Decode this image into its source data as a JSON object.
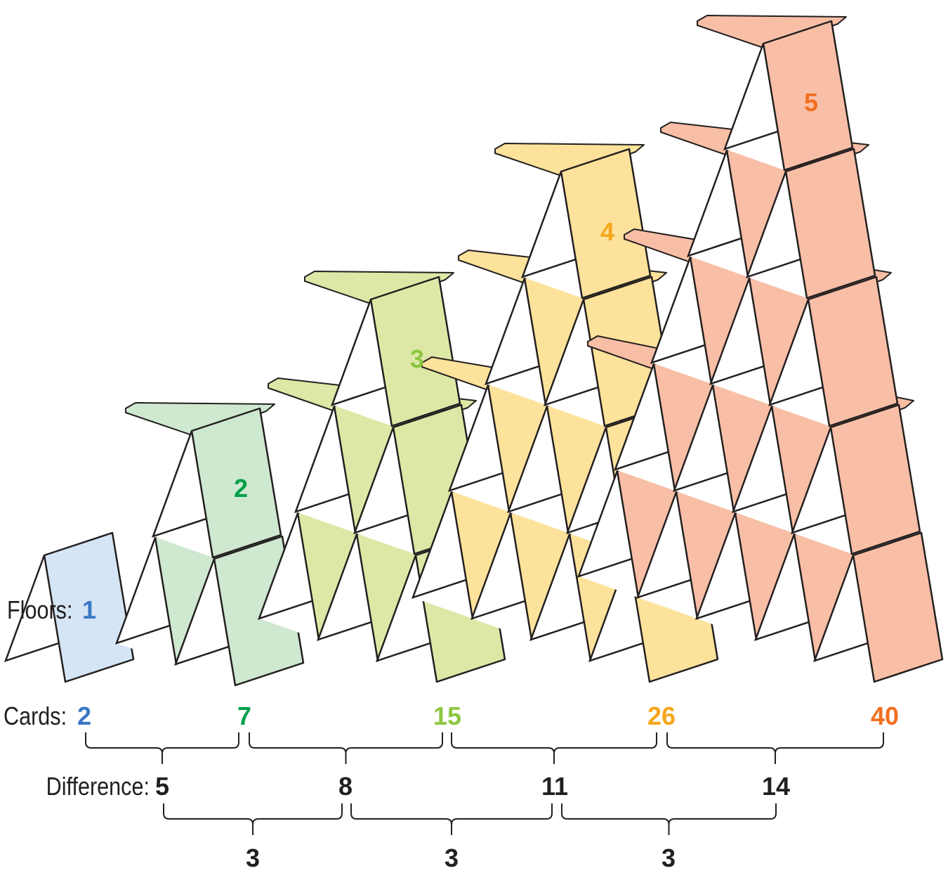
{
  "labels": {
    "floors": "Floors:",
    "cards": "Cards:",
    "difference": "Difference:"
  },
  "houses": [
    {
      "floors": "1",
      "cards": "2",
      "fill": "#d5e5f5",
      "text_color": "#3b78c5"
    },
    {
      "floors": "2",
      "cards": "7",
      "fill": "#cfe8d0",
      "text_color": "#00a04a"
    },
    {
      "floors": "3",
      "cards": "15",
      "fill": "#dde8a6",
      "text_color": "#8dc63f"
    },
    {
      "floors": "4",
      "cards": "26",
      "fill": "#fde29b",
      "text_color": "#f5a81c"
    },
    {
      "floors": "5",
      "cards": "40",
      "fill": "#f8bfa6",
      "text_color": "#f26f21"
    }
  ],
  "differences": [
    "5",
    "8",
    "11",
    "14"
  ],
  "second_differences": [
    "3",
    "3",
    "3"
  ]
}
